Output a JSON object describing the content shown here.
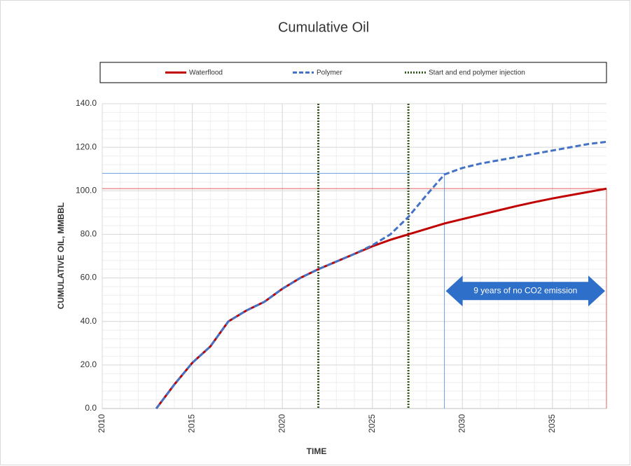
{
  "chart_data": {
    "type": "line",
    "title": "Cumulative Oil",
    "xlabel": "TIME",
    "ylabel": "CUMULATIVE OIL, MMBBL",
    "x": [
      2013,
      2014,
      2015,
      2016,
      2017,
      2018,
      2019,
      2020,
      2021,
      2022,
      2023,
      2024,
      2025,
      2026,
      2027,
      2028,
      2029,
      2030,
      2031,
      2032,
      2033,
      2034,
      2035,
      2036,
      2037,
      2038
    ],
    "series": [
      {
        "name": "Waterflood",
        "color": "#c00000",
        "values": [
          0,
          11,
          21,
          28.5,
          40,
          45,
          49,
          55,
          60,
          64,
          67.5,
          71,
          74.5,
          77.5,
          80,
          82.5,
          85,
          87,
          89,
          91,
          93,
          94.8,
          96.5,
          98,
          99.5,
          101
        ]
      },
      {
        "name": "Polymer",
        "color": "#4472c4",
        "values": [
          0,
          11,
          21,
          28.5,
          40,
          45,
          49,
          55,
          60,
          64,
          67.5,
          71,
          75,
          80,
          88,
          98,
          107.5,
          110.5,
          112.5,
          114,
          115.5,
          117,
          118.5,
          120,
          121.5,
          122.5
        ]
      }
    ],
    "injection_lines": {
      "name": "Start and end polymer injection",
      "color": "#385723",
      "x": [
        2022,
        2027
      ]
    },
    "guides": [
      {
        "color": "#6fa0e0",
        "x": 2029,
        "y": 108
      },
      {
        "color": "#e06060",
        "x": 2038,
        "y": 101
      }
    ],
    "annotation": {
      "text": "9 years of no CO2 emission",
      "x": [
        2029,
        2038
      ],
      "y": 54,
      "color": "#2e6fc9"
    },
    "xlim": [
      2010,
      2038
    ],
    "xticks": [
      2010,
      2015,
      2020,
      2025,
      2030,
      2035
    ],
    "ylim": [
      0,
      140
    ],
    "yticks": [
      {
        "value": 0,
        "label": "0.0"
      },
      {
        "value": 20,
        "label": "20.0"
      },
      {
        "value": 40,
        "label": "40.0"
      },
      {
        "value": 60,
        "label": "60.0"
      },
      {
        "value": 80,
        "label": "80.0"
      },
      {
        "value": 100,
        "label": "100.0"
      },
      {
        "value": 120,
        "label": "120.0"
      },
      {
        "value": 140,
        "label": "140.0"
      }
    ],
    "grid": true,
    "legend": "top"
  }
}
